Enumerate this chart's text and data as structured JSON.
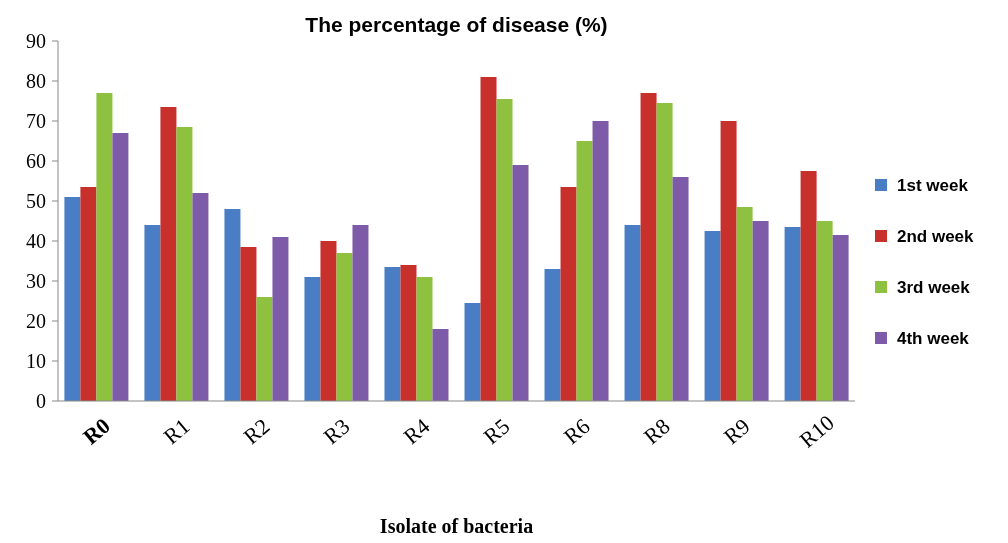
{
  "chart_data": {
    "type": "bar",
    "title": "The percentage of disease (%)",
    "xlabel": "Isolate of bacteria",
    "categories": [
      "R0",
      "R1",
      "R2",
      "R3",
      "R4",
      "R5",
      "R6",
      "R8",
      "R9",
      "R10"
    ],
    "series": [
      {
        "name": "1st week",
        "color": "#4a7ec4",
        "values": [
          51,
          44,
          48,
          31,
          33.5,
          24.5,
          33,
          44,
          42.5,
          43.5
        ]
      },
      {
        "name": "2nd week",
        "color": "#c8302c",
        "values": [
          53.5,
          73.5,
          38.5,
          40,
          34,
          81,
          53.5,
          77,
          70,
          57.5
        ]
      },
      {
        "name": "3rd week",
        "color": "#8dc13f",
        "values": [
          77,
          68.5,
          26,
          37,
          31,
          75.5,
          65,
          74.5,
          48.5,
          45
        ]
      },
      {
        "name": "4th week",
        "color": "#7e5ba8",
        "values": [
          67,
          52,
          41,
          44,
          18,
          59,
          70,
          56,
          45,
          41.5
        ]
      }
    ],
    "ylim": [
      0,
      90
    ],
    "yticks": [
      0,
      10,
      20,
      30,
      40,
      50,
      60,
      70,
      80,
      90
    ],
    "grid": false,
    "legend": "right"
  }
}
